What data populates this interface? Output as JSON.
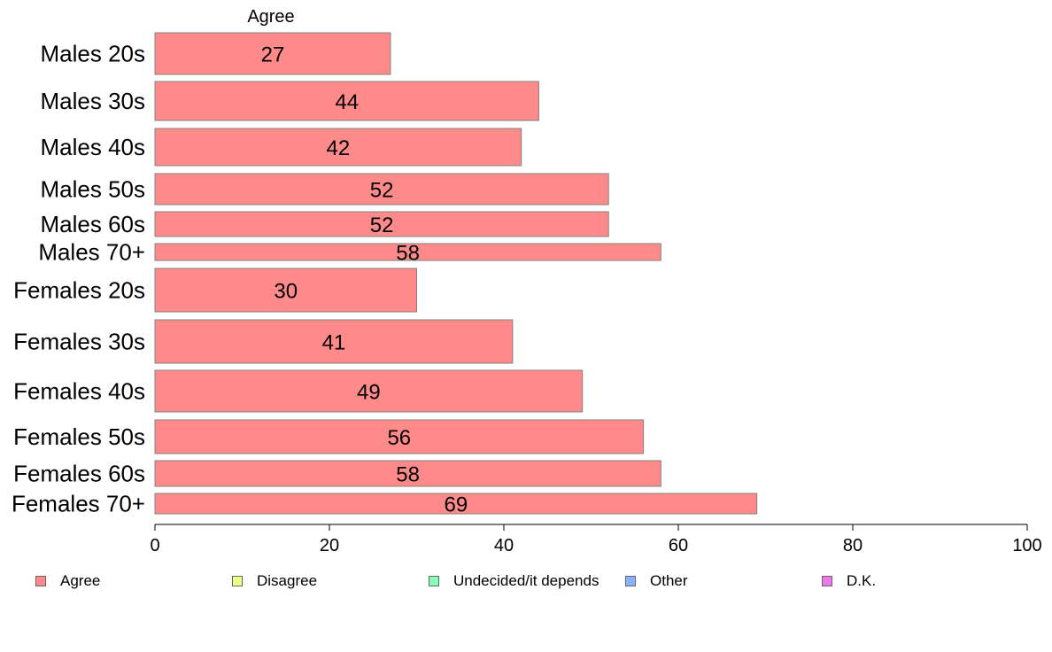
{
  "chart_data": {
    "type": "bar",
    "orientation": "horizontal",
    "series_header": "Agree",
    "categories": [
      "Males 20s",
      "Males 30s",
      "Males 40s",
      "Males 50s",
      "Males 60s",
      "Males 70+",
      "Females 20s",
      "Females 30s",
      "Females 40s",
      "Females 50s",
      "Females 60s",
      "Females 70+"
    ],
    "series": [
      {
        "name": "Agree",
        "color": "#ff8a8a",
        "values": [
          27,
          44,
          42,
          52,
          52,
          58,
          30,
          41,
          49,
          56,
          58,
          69
        ]
      }
    ],
    "data_labels": [
      "27",
      "44",
      "42",
      "52",
      "52",
      "58",
      "30",
      "41",
      "49",
      "56",
      "58",
      "69"
    ],
    "xlim": [
      0,
      100
    ],
    "xticks": [
      0,
      20,
      40,
      60,
      80,
      100
    ],
    "grid": false,
    "legend": {
      "placement": "bottom",
      "items": [
        {
          "label": "Agree",
          "color": "#ff8a8a"
        },
        {
          "label": "Disagree",
          "color": "#eeff88"
        },
        {
          "label": "Undecided/it depends",
          "color": "#88ffb4"
        },
        {
          "label": "Other",
          "color": "#88b4ff"
        },
        {
          "label": "D.K.",
          "color": "#ee77ee"
        }
      ]
    }
  }
}
